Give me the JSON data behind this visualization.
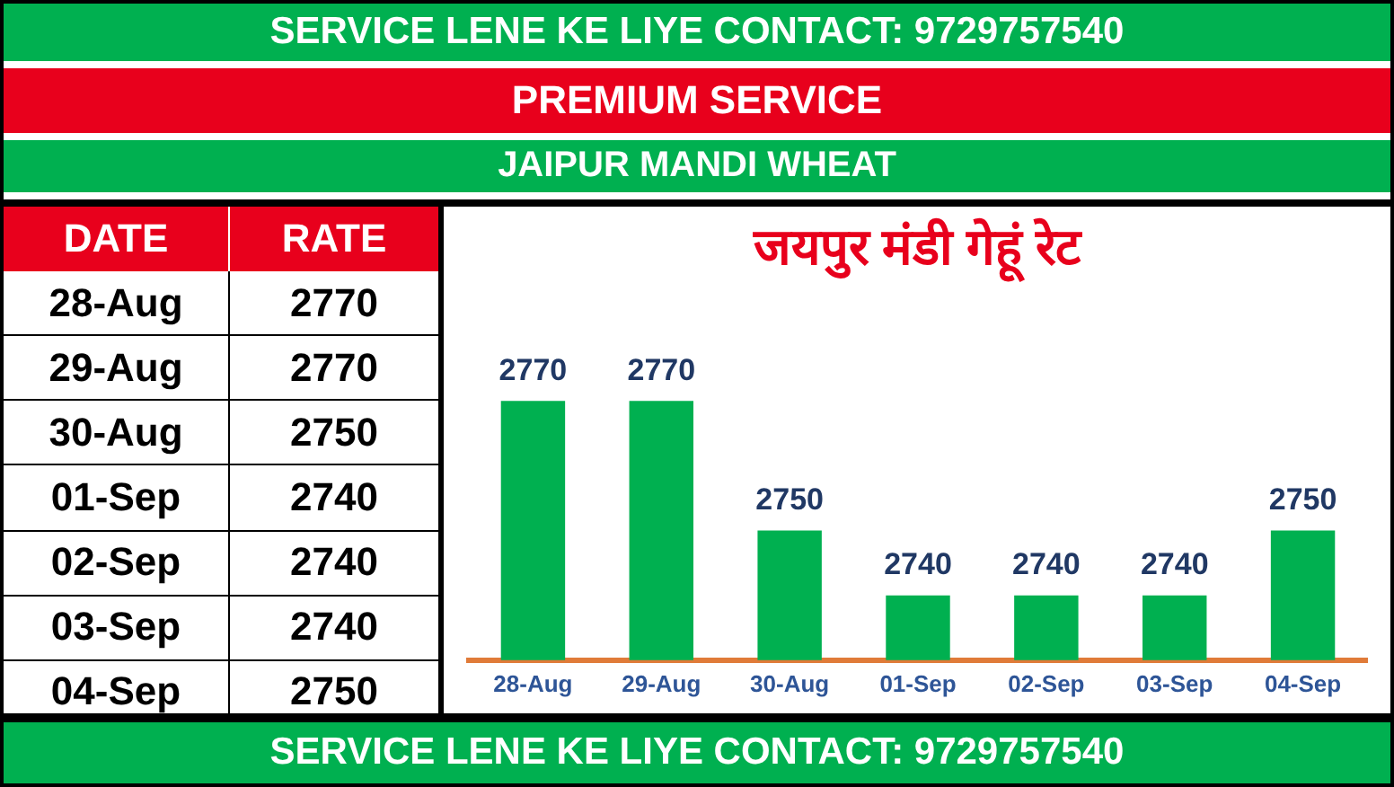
{
  "chart_data": [
    {
      "type": "other",
      "categories": [
        "28-Aug",
        "29-Aug",
        "30-Aug",
        "01-Sep",
        "02-Sep",
        "03-Sep",
        "04-Sep"
      ],
      "values": [
        2770,
        2770,
        2750,
        2740,
        2740,
        2740,
        2750
      ],
      "data_labels": true,
      "annotations": [
        "DATE",
        "RATE"
      ]
    },
    {
      "type": "bar",
      "title": "जयपुर मंडी गेहूं रेट",
      "categories": [
        "28-Aug",
        "29-Aug",
        "30-Aug",
        "01-Sep",
        "02-Sep",
        "03-Sep",
        "04-Sep"
      ],
      "values": [
        2770,
        2770,
        2750,
        2740,
        2740,
        2740,
        2750
      ],
      "color": "#00b050",
      "data_labels": true,
      "grid": false,
      "legend": false,
      "tick_labels": "x",
      "annotations": [
        "SERVICE LENE KE LIYE CONTACT: 9729757540",
        "PREMIUM SERVICE",
        "JAIPUR MANDI WHEAT",
        "SERVICE LENE KE LIYE CONTACT: 9729757540"
      ]
    }
  ]
}
